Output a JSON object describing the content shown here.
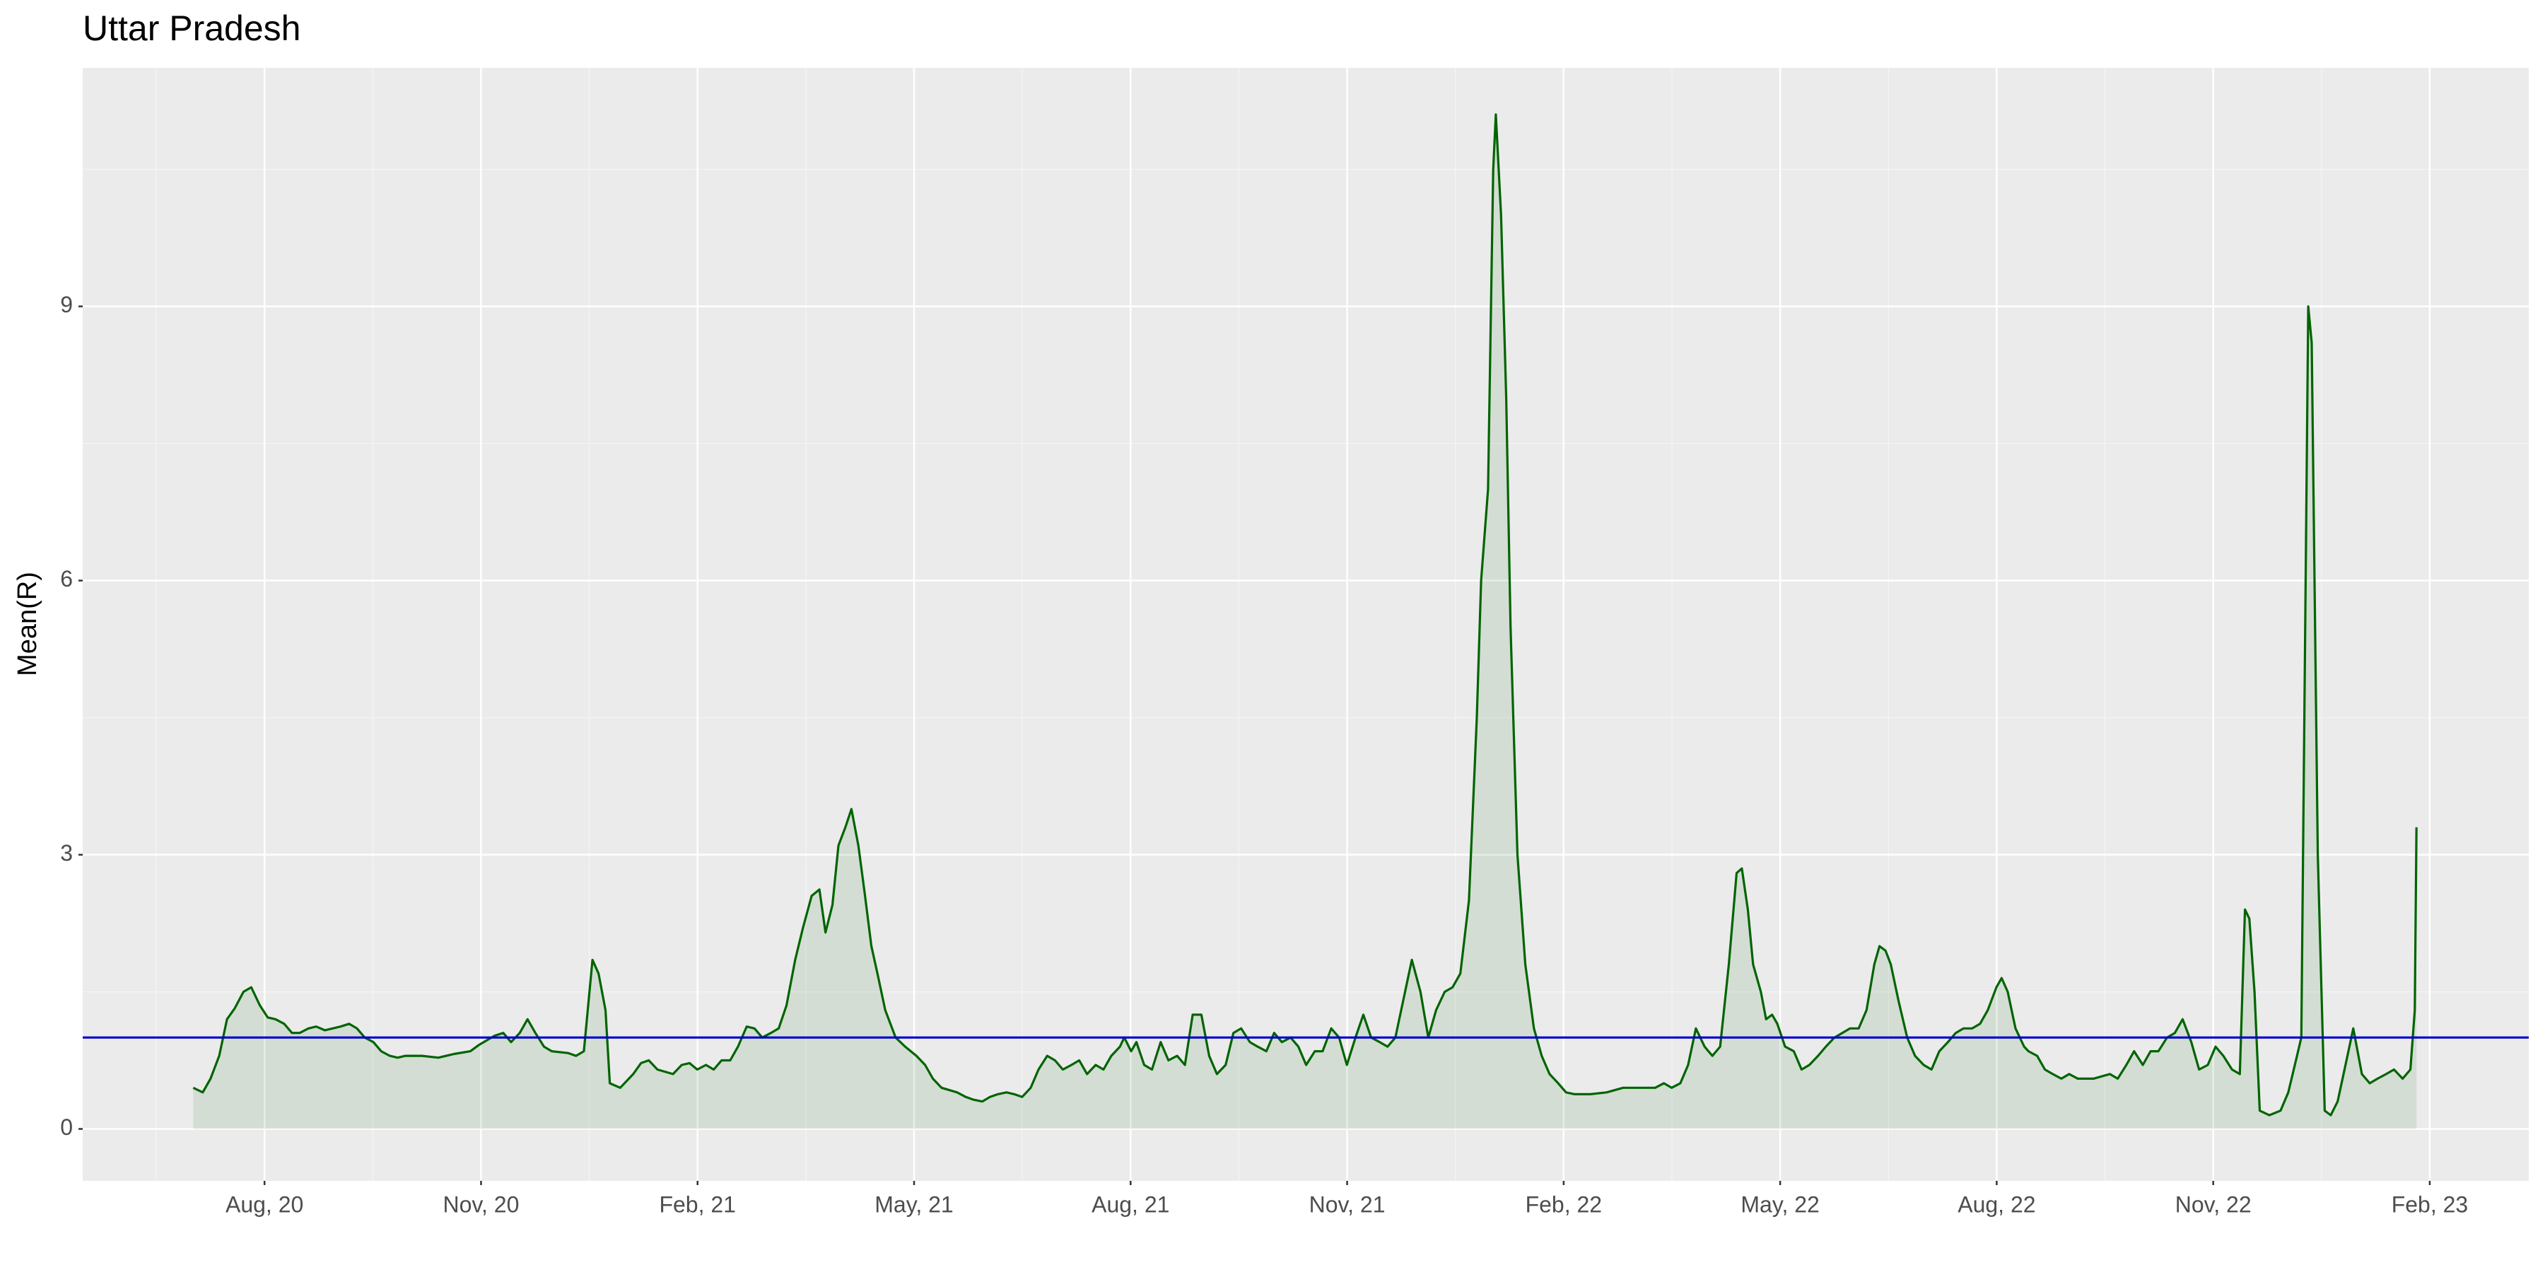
{
  "chart_data": {
    "type": "line",
    "title": "Uttar Pradesh",
    "y_label": "Mean(R)",
    "color": "#006400",
    "area": true,
    "grid": true,
    "hline": {
      "value": 1,
      "color": "#0000cc"
    },
    "xlim": [
      2020.3734,
      2023.1976
    ],
    "xticks": [
      {
        "value": 2020.5833,
        "label": "Aug, 20"
      },
      {
        "value": 2020.8333,
        "label": "Nov, 20"
      },
      {
        "value": 2021.0833,
        "label": "Feb, 21"
      },
      {
        "value": 2021.3333,
        "label": "May, 21"
      },
      {
        "value": 2021.5833,
        "label": "Aug, 21"
      },
      {
        "value": 2021.8333,
        "label": "Nov, 21"
      },
      {
        "value": 2022.0833,
        "label": "Feb, 22"
      },
      {
        "value": 2022.3333,
        "label": "May, 22"
      },
      {
        "value": 2022.5833,
        "label": "Aug, 22"
      },
      {
        "value": 2022.8333,
        "label": "Nov, 22"
      },
      {
        "value": 2023.0833,
        "label": "Feb, 23"
      }
    ],
    "ylim": [
      -0.568,
      11.61
    ],
    "yticks": [
      0,
      3,
      6,
      9
    ],
    "x": [
      2020.501,
      2020.512,
      2020.521,
      2020.531,
      2020.54,
      2020.549,
      2020.559,
      2020.568,
      2020.578,
      2020.587,
      2020.596,
      2020.606,
      2020.615,
      2020.624,
      2020.634,
      2020.643,
      2020.653,
      2020.662,
      2020.671,
      2020.681,
      2020.69,
      2020.699,
      2020.709,
      2020.718,
      2020.728,
      2020.737,
      2020.746,
      2020.765,
      2020.784,
      2020.802,
      2020.821,
      2020.831,
      2020.84,
      2020.849,
      2020.859,
      2020.868,
      2020.878,
      2020.887,
      2020.896,
      2020.906,
      2020.915,
      2020.934,
      2020.943,
      2020.952,
      2020.962,
      2020.969,
      2020.977,
      2020.982,
      2020.994,
      2021.009,
      2021.018,
      2021.027,
      2021.037,
      2021.055,
      2021.065,
      2021.074,
      2021.083,
      2021.093,
      2021.102,
      2021.111,
      2021.121,
      2021.13,
      2021.14,
      2021.149,
      2021.158,
      2021.168,
      2021.177,
      2021.186,
      2021.196,
      2021.205,
      2021.215,
      2021.224,
      2021.231,
      2021.239,
      2021.246,
      2021.254,
      2021.261,
      2021.269,
      2021.276,
      2021.284,
      2021.291,
      2021.3,
      2021.312,
      2021.323,
      2021.336,
      2021.346,
      2021.355,
      2021.365,
      2021.383,
      2021.393,
      2021.402,
      2021.412,
      2021.421,
      2021.43,
      2021.44,
      2021.449,
      2021.458,
      2021.468,
      2021.477,
      2021.487,
      2021.496,
      2021.505,
      2021.515,
      2021.524,
      2021.533,
      2021.543,
      2021.552,
      2021.561,
      2021.571,
      2021.576,
      2021.584,
      2021.59,
      2021.599,
      2021.608,
      2021.618,
      2021.627,
      2021.637,
      2021.646,
      2021.655,
      2021.665,
      2021.674,
      2021.683,
      2021.693,
      2021.702,
      2021.711,
      2021.721,
      2021.73,
      2021.74,
      2021.749,
      2021.758,
      2021.768,
      2021.777,
      2021.786,
      2021.796,
      2021.805,
      2021.815,
      2021.824,
      2021.833,
      2021.843,
      2021.852,
      2021.861,
      2021.871,
      2021.88,
      2021.889,
      2021.908,
      2021.918,
      2021.927,
      2021.936,
      2021.946,
      2021.955,
      2021.964,
      2021.974,
      2021.983,
      2021.988,
      2021.996,
      2022.002,
      2022.005,
      2022.011,
      2022.017,
      2022.022,
      2022.03,
      2022.039,
      2022.049,
      2022.058,
      2022.067,
      2022.077,
      2022.086,
      2022.096,
      2022.114,
      2022.133,
      2022.152,
      2022.171,
      2022.189,
      2022.199,
      2022.208,
      2022.218,
      2022.227,
      2022.236,
      2022.246,
      2022.255,
      2022.264,
      2022.274,
      2022.283,
      2022.289,
      2022.296,
      2022.302,
      2022.311,
      2022.317,
      2022.324,
      2022.33,
      2022.339,
      2022.349,
      2022.358,
      2022.367,
      2022.377,
      2022.386,
      2022.396,
      2022.405,
      2022.414,
      2022.424,
      2022.433,
      2022.442,
      2022.448,
      2022.455,
      2022.461,
      2022.47,
      2022.48,
      2022.489,
      2022.499,
      2022.508,
      2022.517,
      2022.527,
      2022.536,
      2022.545,
      2022.555,
      2022.564,
      2022.573,
      2022.583,
      2022.589,
      2022.596,
      2022.605,
      2022.615,
      2022.62,
      2022.63,
      2022.639,
      2022.648,
      2022.658,
      2022.667,
      2022.677,
      2022.695,
      2022.714,
      2022.723,
      2022.733,
      2022.742,
      2022.752,
      2022.761,
      2022.77,
      2022.78,
      2022.789,
      2022.798,
      2022.808,
      2022.817,
      2022.827,
      2022.836,
      2022.845,
      2022.855,
      2022.864,
      2022.87,
      2022.875,
      2022.881,
      2022.887,
      2022.898,
      2022.911,
      2022.92,
      2022.93,
      2022.935,
      2022.943,
      2022.947,
      2022.954,
      2022.962,
      2022.969,
      2022.977,
      2022.986,
      2022.995,
      2023.005,
      2023.014,
      2023.023,
      2023.033,
      2023.042,
      2023.052,
      2023.061,
      2023.066,
      2023.068
    ],
    "values": [
      0.45,
      0.4,
      0.55,
      0.8,
      1.2,
      1.32,
      1.5,
      1.55,
      1.35,
      1.22,
      1.2,
      1.15,
      1.05,
      1.05,
      1.1,
      1.12,
      1.08,
      1.1,
      1.12,
      1.15,
      1.1,
      1.0,
      0.95,
      0.85,
      0.8,
      0.78,
      0.8,
      0.8,
      0.78,
      0.82,
      0.85,
      0.92,
      0.97,
      1.02,
      1.05,
      0.95,
      1.05,
      1.2,
      1.05,
      0.9,
      0.85,
      0.83,
      0.8,
      0.85,
      1.85,
      1.7,
      1.3,
      0.5,
      0.45,
      0.6,
      0.72,
      0.75,
      0.65,
      0.6,
      0.7,
      0.72,
      0.65,
      0.7,
      0.65,
      0.75,
      0.75,
      0.9,
      1.12,
      1.1,
      1.0,
      1.05,
      1.1,
      1.35,
      1.85,
      2.2,
      2.55,
      2.62,
      2.15,
      2.45,
      3.1,
      3.3,
      3.5,
      3.1,
      2.6,
      2.0,
      1.7,
      1.3,
      1.0,
      0.9,
      0.8,
      0.7,
      0.55,
      0.45,
      0.4,
      0.35,
      0.32,
      0.3,
      0.35,
      0.38,
      0.4,
      0.38,
      0.35,
      0.45,
      0.65,
      0.8,
      0.75,
      0.65,
      0.7,
      0.75,
      0.6,
      0.7,
      0.65,
      0.8,
      0.9,
      1.0,
      0.85,
      0.95,
      0.7,
      0.65,
      0.95,
      0.75,
      0.8,
      0.7,
      1.25,
      1.25,
      0.8,
      0.6,
      0.7,
      1.05,
      1.1,
      0.95,
      0.9,
      0.85,
      1.05,
      0.95,
      1.0,
      0.9,
      0.7,
      0.85,
      0.85,
      1.1,
      1.0,
      0.7,
      1.0,
      1.25,
      1.0,
      0.95,
      0.9,
      1.0,
      1.85,
      1.5,
      1.0,
      1.3,
      1.5,
      1.55,
      1.7,
      2.5,
      4.5,
      6.0,
      7.0,
      10.5,
      11.1,
      10.0,
      8.0,
      5.5,
      3.0,
      1.8,
      1.1,
      0.8,
      0.6,
      0.5,
      0.4,
      0.38,
      0.38,
      0.4,
      0.45,
      0.45,
      0.45,
      0.5,
      0.45,
      0.5,
      0.7,
      1.1,
      0.9,
      0.8,
      0.9,
      1.8,
      2.8,
      2.85,
      2.4,
      1.8,
      1.5,
      1.2,
      1.25,
      1.15,
      0.9,
      0.85,
      0.65,
      0.7,
      0.8,
      0.9,
      1.0,
      1.05,
      1.1,
      1.1,
      1.3,
      1.8,
      2.0,
      1.95,
      1.8,
      1.4,
      1.0,
      0.8,
      0.7,
      0.65,
      0.85,
      0.95,
      1.05,
      1.1,
      1.1,
      1.15,
      1.3,
      1.55,
      1.65,
      1.5,
      1.1,
      0.9,
      0.85,
      0.8,
      0.65,
      0.6,
      0.55,
      0.6,
      0.55,
      0.55,
      0.6,
      0.55,
      0.7,
      0.85,
      0.7,
      0.85,
      0.85,
      1.0,
      1.05,
      1.2,
      0.95,
      0.65,
      0.7,
      0.9,
      0.8,
      0.65,
      0.6,
      2.4,
      2.3,
      1.5,
      0.2,
      0.15,
      0.2,
      0.4,
      0.8,
      1.0,
      9.0,
      8.6,
      3.0,
      0.2,
      0.15,
      0.3,
      0.7,
      1.1,
      0.6,
      0.5,
      0.55,
      0.6,
      0.65,
      0.55,
      0.65,
      1.3,
      3.3
    ]
  }
}
